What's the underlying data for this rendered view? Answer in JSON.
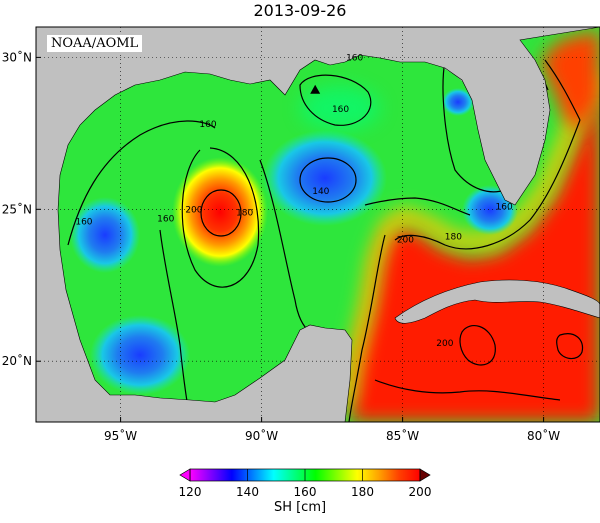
{
  "title": "2013-09-26",
  "credit": "NOAA/AOML",
  "map": {
    "lon_range": [
      -98,
      -78
    ],
    "lat_range": [
      18,
      31
    ],
    "lon_ticks": [
      {
        "value": -95,
        "label": "95˚W"
      },
      {
        "value": -90,
        "label": "90˚W"
      },
      {
        "value": -85,
        "label": "85˚W"
      },
      {
        "value": -80,
        "label": "80˚W"
      }
    ],
    "lat_ticks": [
      {
        "value": 20,
        "label": "20˚N"
      },
      {
        "value": 25,
        "label": "25˚N"
      },
      {
        "value": 30,
        "label": "30˚N"
      }
    ],
    "contour_labels": [
      {
        "lon": -86.7,
        "lat": 30.0,
        "text": "160"
      },
      {
        "lon": -87.2,
        "lat": 28.3,
        "text": "160"
      },
      {
        "lon": -91.9,
        "lat": 27.8,
        "text": "160"
      },
      {
        "lon": -96.3,
        "lat": 24.6,
        "text": "160"
      },
      {
        "lon": -93.4,
        "lat": 24.7,
        "text": "160"
      },
      {
        "lon": -92.4,
        "lat": 25.0,
        "text": "200"
      },
      {
        "lon": -90.6,
        "lat": 24.9,
        "text": "180"
      },
      {
        "lon": -87.9,
        "lat": 25.6,
        "text": "140"
      },
      {
        "lon": -84.9,
        "lat": 24.0,
        "text": "200"
      },
      {
        "lon": -83.2,
        "lat": 24.1,
        "text": "180"
      },
      {
        "lon": -81.4,
        "lat": 25.1,
        "text": "160"
      },
      {
        "lon": -83.5,
        "lat": 20.6,
        "text": "200"
      }
    ],
    "marker": {
      "name": "station",
      "lon": -88.1,
      "lat": 28.9
    }
  },
  "colorbar": {
    "label": "SH [cm]",
    "min": 120,
    "max": 200,
    "ticks": [
      {
        "value": 120,
        "label": "120"
      },
      {
        "value": 140,
        "label": "140"
      },
      {
        "value": 160,
        "label": "160"
      },
      {
        "value": 180,
        "label": "180"
      },
      {
        "value": 200,
        "label": "200"
      }
    ],
    "stops": [
      "#ff00ff",
      "#8000ff",
      "#0000ff",
      "#0080ff",
      "#00ffff",
      "#00ff80",
      "#00ff00",
      "#80ff00",
      "#ffff00",
      "#ffa500",
      "#ff4000",
      "#ff0000"
    ]
  },
  "colors": {
    "land": "#c0c0c0",
    "ocean_base": "#2ee63c",
    "warm": "#ff1a00",
    "cold": "#1e5be6"
  }
}
